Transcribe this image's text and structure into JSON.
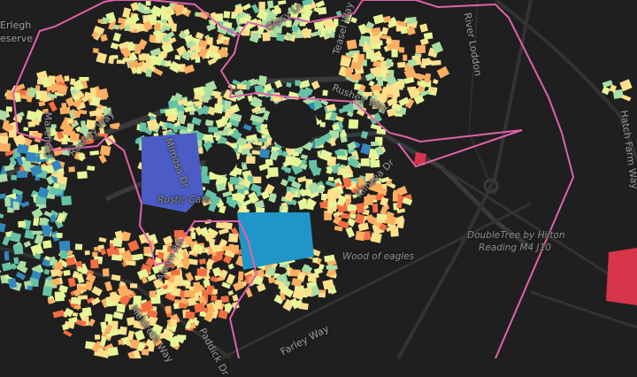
{
  "map": {
    "background_color": "#1f1f1f",
    "road_color": "#3a3a3a",
    "boundary_color": "#e062a8",
    "building_palette": [
      "#5e4fa2",
      "#3288bd",
      "#66c2a5",
      "#abdda4",
      "#e6f598",
      "#fee08b",
      "#fdae61",
      "#f46d43",
      "#d53e4f"
    ],
    "large_area_colors": {
      "blue_block": "#4b5cc4",
      "cyan_block": "#1f96c7",
      "red_block": "#d8344a"
    }
  },
  "labels": {
    "erlegh": "Erlegh",
    "reserve": "eserve",
    "marefield": "Marefield",
    "rushey_way_west": "Rushey Way",
    "mimosa_dr": "Mimosa Dr",
    "rustic_cafe": "Rustic Cafe",
    "gipsy_ln": "Gipsy Ln",
    "teasel_way": "Teasel Way",
    "rushey_way_east": "Rushey Way",
    "river_loddon": "River Loddon",
    "hatch_farm_way": "Hatch Farm Way",
    "kilnsea_dr": "Kilnsea Dr",
    "doubletree_line1": "DoubleTree by Hilton",
    "doubletree_line2": "Reading M4 J10",
    "wood_of_eagles": "Wood of eagles",
    "farley_way": "Farley Way",
    "alwyn_rd": "Alwyn Rd",
    "meldreth_way": "Meldreth Way",
    "paddick_dr": "Paddick Dr"
  }
}
